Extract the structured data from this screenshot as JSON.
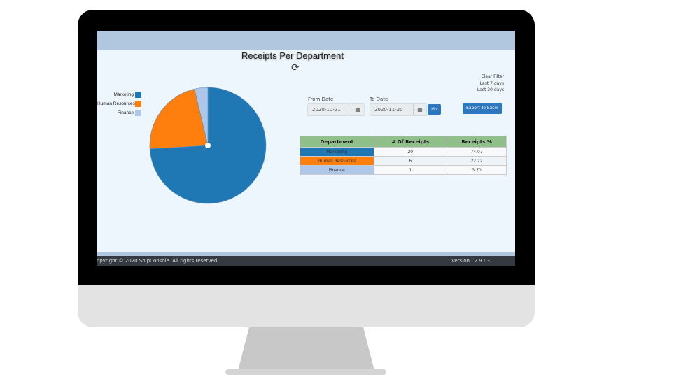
{
  "title": "Receipts Per Department",
  "refresh_icon": "refresh-icon",
  "filters": {
    "clear": "Clear Filter",
    "last7": "Last 7 days",
    "last30": "Last 30 days"
  },
  "from_label": "From Date",
  "from_value": "2020-10-21",
  "to_label": "To Date",
  "to_value": "2020-11-20",
  "go": "Go",
  "export": "Export To Excel",
  "table": {
    "headers": [
      "Department",
      "# Of Receipts",
      "Receipts %"
    ],
    "rows": [
      [
        "Marketing",
        "20",
        "74.07"
      ],
      [
        "Human Resources",
        "6",
        "22.22"
      ],
      [
        "Finance",
        "1",
        "3.70"
      ]
    ]
  },
  "footer": {
    "copyright": "opyright © 2020 ShipConsole. All rights reserved",
    "version": "Version : 2.9.03"
  },
  "chart_data": {
    "type": "pie",
    "categories": [
      "Marketing",
      "Human Resources",
      "Finance"
    ],
    "values": [
      20,
      6,
      1
    ],
    "colors": [
      "#1f77b4",
      "#ff7f0e",
      "#aec7e8"
    ],
    "legend": "left"
  }
}
